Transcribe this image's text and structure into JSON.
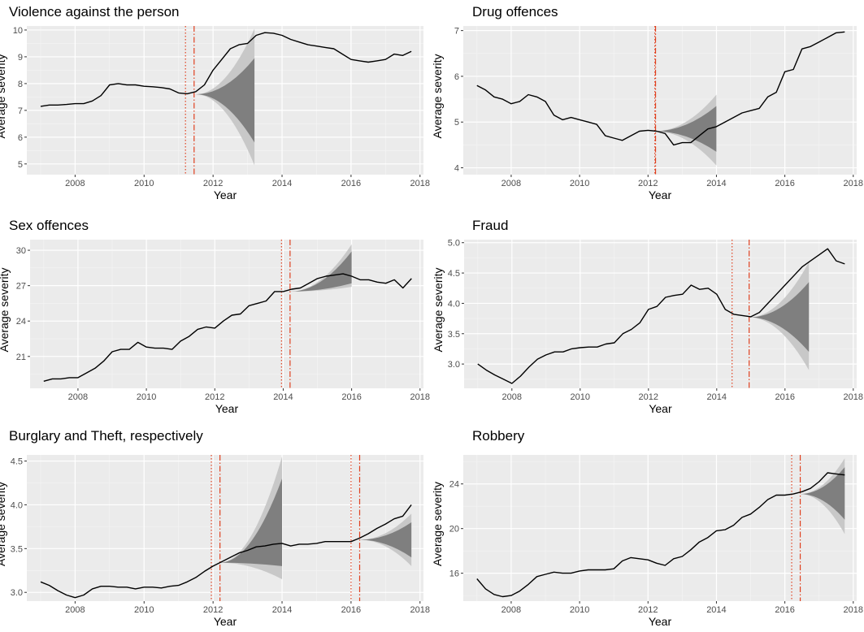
{
  "figure": {
    "xlabel": "Year",
    "ylabel": "Average severity"
  },
  "chart_data": [
    {
      "type": "line",
      "title": "Violence against the person",
      "xlabel": "Year",
      "ylabel": "Average severity",
      "xlim": [
        2006.6,
        2018.1
      ],
      "ylim": [
        4.6,
        10.15
      ],
      "x_ticks": [
        2008,
        2010,
        2012,
        2014,
        2016,
        2018
      ],
      "y_ticks": [
        5,
        6,
        7,
        8,
        9,
        10
      ],
      "series": [
        {
          "x": [
            2007.0,
            2007.25,
            2007.5,
            2007.75,
            2008.0,
            2008.25,
            2008.5,
            2008.75,
            2009.0,
            2009.25,
            2009.5,
            2009.75,
            2010.0,
            2010.25,
            2010.5,
            2010.75,
            2011.0,
            2011.25,
            2011.5,
            2011.75,
            2012.0,
            2012.25,
            2012.5,
            2012.75,
            2013.0,
            2013.25,
            2013.5,
            2013.75,
            2014.0,
            2014.25,
            2014.5,
            2014.75,
            2015.0,
            2015.25,
            2015.5,
            2015.75,
            2016.0,
            2016.25,
            2016.5,
            2016.75,
            2017.0,
            2017.25,
            2017.5,
            2017.75
          ],
          "y": [
            7.15,
            7.2,
            7.2,
            7.22,
            7.25,
            7.25,
            7.35,
            7.55,
            7.95,
            8.0,
            7.95,
            7.95,
            7.9,
            7.88,
            7.85,
            7.8,
            7.65,
            7.62,
            7.7,
            7.95,
            8.5,
            8.9,
            9.3,
            9.45,
            9.5,
            9.8,
            9.9,
            9.88,
            9.8,
            9.65,
            9.55,
            9.45,
            9.4,
            9.35,
            9.3,
            9.1,
            8.9,
            8.85,
            8.8,
            8.85,
            8.9,
            9.1,
            9.05,
            9.2
          ]
        }
      ],
      "forecasts": [
        {
          "start": 2011.5,
          "end": 2013.2,
          "center_start": 7.6,
          "outer": [
            6.55,
            10.05
          ],
          "inner": [
            6.1,
            9.2
          ],
          "inner_low_at_end": 5.8,
          "inner_high_at_end": 8.95,
          "outer_low_at_end": 4.95,
          "outer_high_at_end": 10.05
        }
      ],
      "markers": [
        {
          "x": 2011.2,
          "style": "dotted"
        },
        {
          "x": 2011.45,
          "style": "dashdot"
        }
      ]
    },
    {
      "type": "line",
      "title": "Drug offences",
      "xlabel": "Year",
      "ylabel": "Average severity",
      "xlim": [
        2006.6,
        2018.1
      ],
      "ylim": [
        3.85,
        7.1
      ],
      "x_ticks": [
        2008,
        2010,
        2012,
        2014,
        2016,
        2018
      ],
      "y_ticks": [
        4,
        5,
        6,
        7
      ],
      "series": [
        {
          "x": [
            2007.0,
            2007.25,
            2007.5,
            2007.75,
            2008.0,
            2008.25,
            2008.5,
            2008.75,
            2009.0,
            2009.25,
            2009.5,
            2009.75,
            2010.0,
            2010.25,
            2010.5,
            2010.75,
            2011.0,
            2011.25,
            2011.5,
            2011.75,
            2012.0,
            2012.25,
            2012.5,
            2012.75,
            2013.0,
            2013.25,
            2013.5,
            2013.75,
            2014.0,
            2014.25,
            2014.5,
            2014.75,
            2015.0,
            2015.25,
            2015.5,
            2015.75,
            2016.0,
            2016.25,
            2016.5,
            2016.75,
            2017.0,
            2017.25,
            2017.5,
            2017.75
          ],
          "y": [
            5.8,
            5.7,
            5.55,
            5.5,
            5.4,
            5.45,
            5.6,
            5.55,
            5.45,
            5.15,
            5.05,
            5.1,
            5.05,
            5.0,
            4.95,
            4.7,
            4.65,
            4.6,
            4.7,
            4.8,
            4.82,
            4.8,
            4.75,
            4.5,
            4.55,
            4.55,
            4.7,
            4.85,
            4.9,
            5.0,
            5.1,
            5.2,
            5.25,
            5.3,
            5.55,
            5.65,
            6.1,
            6.15,
            6.6,
            6.65,
            6.75,
            6.85,
            6.95,
            6.97
          ]
        }
      ],
      "forecasts": [
        {
          "start": 2012.2,
          "end": 2014.0,
          "center_start": 4.8,
          "inner_low_at_end": 4.35,
          "inner_high_at_end": 5.35,
          "outer_low_at_end": 4.05,
          "outer_high_at_end": 5.6
        }
      ],
      "markers": [
        {
          "x": 2012.2,
          "style": "dotted"
        },
        {
          "x": 2012.22,
          "style": "dashdot"
        }
      ]
    },
    {
      "type": "line",
      "title": "Sex offences",
      "xlabel": "Year",
      "ylabel": "Average severity",
      "xlim": [
        2006.6,
        2018.1
      ],
      "ylim": [
        18.3,
        30.9
      ],
      "x_ticks": [
        2008,
        2010,
        2012,
        2014,
        2016,
        2018
      ],
      "y_ticks": [
        21,
        24,
        27,
        30
      ],
      "series": [
        {
          "x": [
            2007.0,
            2007.25,
            2007.5,
            2007.75,
            2008.0,
            2008.25,
            2008.5,
            2008.75,
            2009.0,
            2009.25,
            2009.5,
            2009.75,
            2010.0,
            2010.25,
            2010.5,
            2010.75,
            2011.0,
            2011.25,
            2011.5,
            2011.75,
            2012.0,
            2012.25,
            2012.5,
            2012.75,
            2013.0,
            2013.25,
            2013.5,
            2013.75,
            2014.0,
            2014.25,
            2014.5,
            2014.75,
            2015.0,
            2015.25,
            2015.5,
            2015.75,
            2016.0,
            2016.25,
            2016.5,
            2016.75,
            2017.0,
            2017.25,
            2017.5,
            2017.75
          ],
          "y": [
            18.9,
            19.1,
            19.1,
            19.2,
            19.2,
            19.6,
            20.0,
            20.6,
            21.4,
            21.6,
            21.6,
            22.2,
            21.8,
            21.7,
            21.7,
            21.6,
            22.3,
            22.7,
            23.3,
            23.5,
            23.4,
            24.0,
            24.5,
            24.6,
            25.3,
            25.5,
            25.7,
            26.5,
            26.5,
            26.7,
            26.8,
            27.2,
            27.6,
            27.8,
            27.9,
            28.0,
            27.8,
            27.5,
            27.5,
            27.3,
            27.2,
            27.5,
            26.8,
            27.6
          ]
        }
      ],
      "forecasts": [
        {
          "start": 2014.2,
          "end": 2016.0,
          "center_start": 26.5,
          "inner_low_at_end": 27.2,
          "inner_high_at_end": 29.9,
          "outer_low_at_end": 26.9,
          "outer_high_at_end": 30.5
        }
      ],
      "markers": [
        {
          "x": 2013.95,
          "style": "dotted"
        },
        {
          "x": 2014.2,
          "style": "dashdot"
        }
      ]
    },
    {
      "type": "line",
      "title": "Fraud",
      "xlabel": "Year",
      "ylabel": "Average severity",
      "xlim": [
        2006.6,
        2018.1
      ],
      "ylim": [
        2.6,
        5.05
      ],
      "x_ticks": [
        2008,
        2010,
        2012,
        2014,
        2016,
        2018
      ],
      "y_ticks": [
        3.0,
        3.5,
        4.0,
        4.5,
        5.0
      ],
      "y_tick_labels": [
        "3.0",
        "3.5",
        "4.0",
        "4.5",
        "5.0"
      ],
      "series": [
        {
          "x": [
            2007.0,
            2007.25,
            2007.5,
            2007.75,
            2008.0,
            2008.25,
            2008.5,
            2008.75,
            2009.0,
            2009.25,
            2009.5,
            2009.75,
            2010.0,
            2010.25,
            2010.5,
            2010.75,
            2011.0,
            2011.25,
            2011.5,
            2011.75,
            2012.0,
            2012.25,
            2012.5,
            2012.75,
            2013.0,
            2013.25,
            2013.5,
            2013.75,
            2014.0,
            2014.25,
            2014.5,
            2014.75,
            2015.0,
            2015.25,
            2015.5,
            2015.75,
            2016.0,
            2016.25,
            2016.5,
            2016.75,
            2017.0,
            2017.25,
            2017.5,
            2017.75
          ],
          "y": [
            3.0,
            2.9,
            2.82,
            2.75,
            2.68,
            2.8,
            2.95,
            3.08,
            3.15,
            3.2,
            3.2,
            3.25,
            3.27,
            3.28,
            3.28,
            3.33,
            3.35,
            3.5,
            3.57,
            3.68,
            3.9,
            3.95,
            4.1,
            4.13,
            4.15,
            4.3,
            4.23,
            4.25,
            4.15,
            3.9,
            3.82,
            3.8,
            3.78,
            3.85,
            4.0,
            4.15,
            4.3,
            4.45,
            4.6,
            4.7,
            4.8,
            4.9,
            4.7,
            4.65
          ]
        }
      ],
      "forecasts": [
        {
          "start": 2014.95,
          "end": 2016.7,
          "center_start": 3.77,
          "inner_low_at_end": 3.2,
          "inner_high_at_end": 4.35,
          "outer_low_at_end": 2.9,
          "outer_high_at_end": 4.68
        }
      ],
      "markers": [
        {
          "x": 2014.45,
          "style": "dotted"
        },
        {
          "x": 2014.95,
          "style": "dashdot"
        }
      ]
    },
    {
      "type": "line",
      "title": "Burglary and Theft, respectively",
      "xlabel": "Year",
      "ylabel": "Average severity",
      "xlim": [
        2006.6,
        2018.1
      ],
      "ylim": [
        2.9,
        4.57
      ],
      "x_ticks": [
        2008,
        2010,
        2012,
        2014,
        2016,
        2018
      ],
      "y_ticks": [
        3.0,
        3.5,
        4.0,
        4.5
      ],
      "y_tick_labels": [
        "3.0",
        "3.5",
        "4.0",
        "4.5"
      ],
      "series": [
        {
          "x": [
            2007.0,
            2007.25,
            2007.5,
            2007.75,
            2008.0,
            2008.25,
            2008.5,
            2008.75,
            2009.0,
            2009.25,
            2009.5,
            2009.75,
            2010.0,
            2010.25,
            2010.5,
            2010.75,
            2011.0,
            2011.25,
            2011.5,
            2011.75,
            2012.0,
            2012.25,
            2012.5,
            2012.75,
            2013.0,
            2013.25,
            2013.5,
            2013.75,
            2014.0,
            2014.25,
            2014.5,
            2014.75,
            2015.0,
            2015.25,
            2015.5,
            2015.75,
            2016.0,
            2016.25,
            2016.5,
            2016.75,
            2017.0,
            2017.25,
            2017.5,
            2017.75
          ],
          "y": [
            3.12,
            3.08,
            3.02,
            2.97,
            2.94,
            2.97,
            3.04,
            3.07,
            3.07,
            3.06,
            3.06,
            3.04,
            3.06,
            3.06,
            3.05,
            3.07,
            3.08,
            3.12,
            3.17,
            3.24,
            3.3,
            3.35,
            3.4,
            3.45,
            3.48,
            3.52,
            3.53,
            3.55,
            3.56,
            3.53,
            3.55,
            3.55,
            3.56,
            3.58,
            3.58,
            3.58,
            3.58,
            3.62,
            3.67,
            3.73,
            3.78,
            3.84,
            3.87,
            4.0
          ]
        }
      ],
      "forecasts": [
        {
          "start": 2012.2,
          "end": 2014.0,
          "center_start": 3.34,
          "inner_low_at_end": 3.3,
          "inner_high_at_end": 4.3,
          "outer_low_at_end": 3.15,
          "outer_high_at_end": 4.55
        },
        {
          "start": 2016.25,
          "end": 2017.75,
          "center_start": 3.6,
          "inner_low_at_end": 3.4,
          "inner_high_at_end": 3.8,
          "outer_low_at_end": 3.3,
          "outer_high_at_end": 3.9
        }
      ],
      "markers": [
        {
          "x": 2011.95,
          "style": "dotted"
        },
        {
          "x": 2012.2,
          "style": "dashdot"
        },
        {
          "x": 2016.0,
          "style": "dotted"
        },
        {
          "x": 2016.25,
          "style": "dashdot"
        }
      ]
    },
    {
      "type": "line",
      "title": "Robbery",
      "xlabel": "Year",
      "ylabel": "Average severity",
      "xlim": [
        2006.6,
        2018.1
      ],
      "ylim": [
        13.5,
        26.6
      ],
      "x_ticks": [
        2008,
        2010,
        2012,
        2014,
        2016,
        2018
      ],
      "y_ticks": [
        16,
        20,
        24
      ],
      "series": [
        {
          "x": [
            2007.0,
            2007.25,
            2007.5,
            2007.75,
            2008.0,
            2008.25,
            2008.5,
            2008.75,
            2009.0,
            2009.25,
            2009.5,
            2009.75,
            2010.0,
            2010.25,
            2010.5,
            2010.75,
            2011.0,
            2011.25,
            2011.5,
            2011.75,
            2012.0,
            2012.25,
            2012.5,
            2012.75,
            2013.0,
            2013.25,
            2013.5,
            2013.75,
            2014.0,
            2014.25,
            2014.5,
            2014.75,
            2015.0,
            2015.25,
            2015.5,
            2015.75,
            2016.0,
            2016.25,
            2016.5,
            2016.75,
            2017.0,
            2017.25,
            2017.5,
            2017.75
          ],
          "y": [
            15.5,
            14.6,
            14.1,
            13.9,
            14.0,
            14.4,
            15.0,
            15.7,
            15.9,
            16.1,
            16.0,
            16.0,
            16.2,
            16.3,
            16.3,
            16.3,
            16.4,
            17.1,
            17.4,
            17.3,
            17.2,
            16.9,
            16.7,
            17.3,
            17.5,
            18.1,
            18.8,
            19.2,
            19.8,
            19.9,
            20.3,
            21.0,
            21.3,
            21.9,
            22.6,
            23.0,
            23.0,
            23.1,
            23.3,
            23.6,
            24.2,
            25.0,
            24.9,
            24.8
          ]
        }
      ],
      "forecasts": [
        {
          "start": 2016.45,
          "end": 2017.75,
          "center_start": 23.1,
          "inner_low_at_end": 20.8,
          "inner_high_at_end": 25.5,
          "outer_low_at_end": 19.5,
          "outer_high_at_end": 26.3
        }
      ],
      "markers": [
        {
          "x": 2016.2,
          "style": "dotted"
        },
        {
          "x": 2016.45,
          "style": "dashdot"
        }
      ]
    }
  ],
  "colors": {
    "panel_bg": "#ebebeb",
    "grid_major": "#ffffff",
    "line": "#000000",
    "band_outer": "#c8c8c8",
    "band_inner": "#7f7f7f",
    "marker": "#e0401f"
  }
}
